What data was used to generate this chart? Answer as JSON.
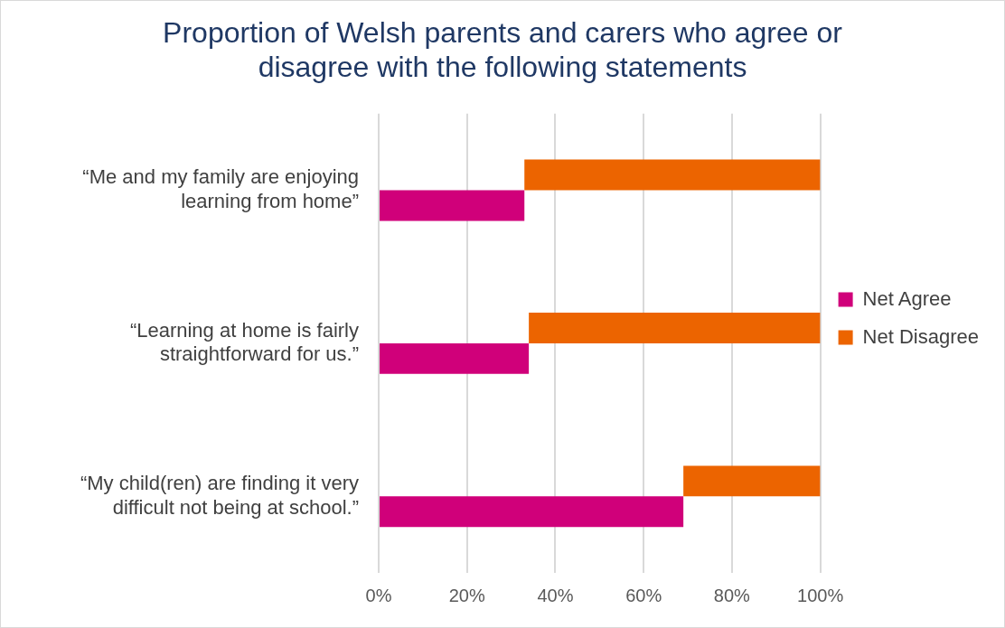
{
  "chart_data": {
    "type": "bar",
    "orientation": "horizontal",
    "title": "Proportion of Welsh parents and carers who agree or disagree with the following statements",
    "categories": [
      "“Me and my family are enjoying learning from home”",
      "“Learning at home is fairly straightforward for us.”",
      "“My child(ren) are finding it very difficult not being at school.”"
    ],
    "series": [
      {
        "name": "Net Agree",
        "color": "#d0007a",
        "values": [
          0.33,
          0.34,
          0.69
        ]
      },
      {
        "name": "Net Disagree",
        "color": "#ec6400",
        "values": [
          0.67,
          0.66,
          0.31
        ],
        "base": [
          0.33,
          0.34,
          0.69
        ]
      }
    ],
    "xlim": [
      0,
      1
    ],
    "xticks": [
      {
        "value": 0,
        "label": "0%"
      },
      {
        "value": 0.2,
        "label": "20%"
      },
      {
        "value": 0.4,
        "label": "40%"
      },
      {
        "value": 0.6,
        "label": "60%"
      },
      {
        "value": 0.8,
        "label": "80%"
      },
      {
        "value": 1,
        "label": "100%"
      }
    ],
    "grid": "x",
    "legend": "right"
  }
}
